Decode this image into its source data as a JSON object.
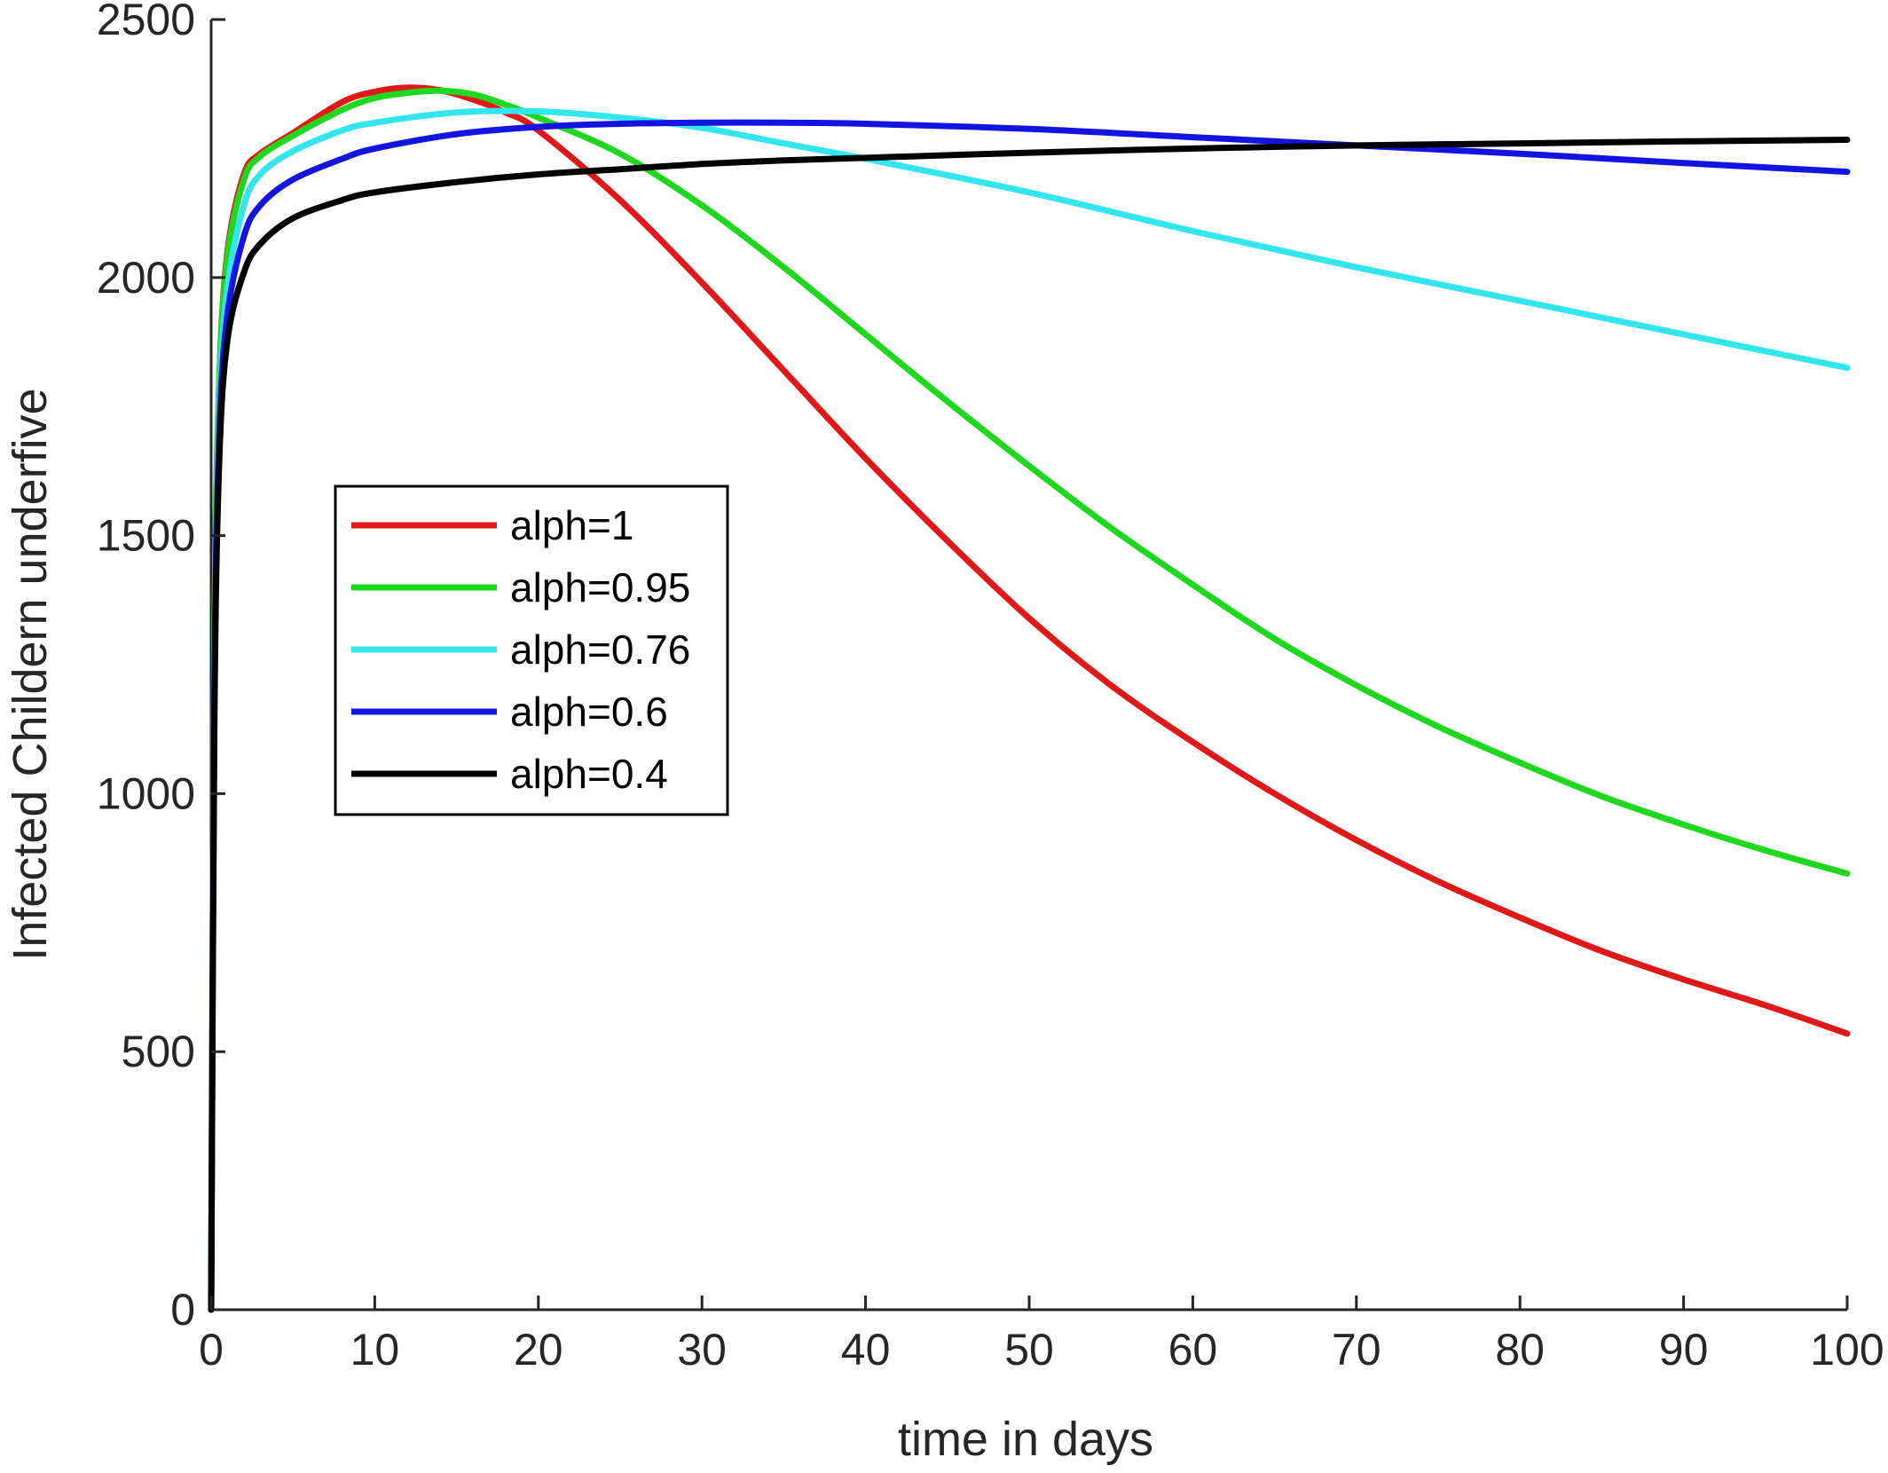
{
  "chart_data": {
    "type": "line",
    "title": "",
    "xlabel": "time in days",
    "ylabel": "Infected Childern underfive",
    "xlim": [
      0,
      100
    ],
    "ylim": [
      0,
      2500
    ],
    "xticks": [
      0,
      10,
      20,
      30,
      40,
      50,
      60,
      70,
      80,
      90,
      100
    ],
    "xtick_labels": [
      "0",
      "10",
      "20",
      "30",
      "40",
      "50",
      "60",
      "70",
      "80",
      "90",
      "100"
    ],
    "yticks": [
      0,
      500,
      1000,
      1500,
      2000,
      2500
    ],
    "ytick_labels": [
      "0",
      "500",
      "1000",
      "1500",
      "2000",
      "2500"
    ],
    "grid": false,
    "legend_position": "center-left",
    "series": [
      {
        "name": "alph=1",
        "color": "#e01818",
        "x": [
          0,
          0.2,
          0.5,
          1,
          2,
          3,
          5,
          8,
          10,
          12,
          14,
          16,
          18,
          20,
          25,
          30,
          35,
          40,
          45,
          50,
          55,
          60,
          65,
          70,
          75,
          80,
          85,
          90,
          95,
          100
        ],
        "y": [
          0,
          1300,
          1800,
          2050,
          2200,
          2240,
          2280,
          2340,
          2360,
          2368,
          2363,
          2345,
          2320,
          2285,
          2150,
          1990,
          1820,
          1650,
          1490,
          1340,
          1210,
          1100,
          1000,
          910,
          830,
          760,
          695,
          640,
          590,
          535
        ]
      },
      {
        "name": "alph=0.95",
        "color": "#1ed81e",
        "x": [
          0,
          0.2,
          0.5,
          1,
          2,
          3,
          5,
          8,
          10,
          12,
          14,
          16,
          18,
          20,
          25,
          30,
          35,
          40,
          45,
          50,
          55,
          60,
          65,
          70,
          75,
          80,
          85,
          90,
          95,
          100
        ],
        "y": [
          0,
          1300,
          1800,
          2040,
          2190,
          2235,
          2275,
          2325,
          2348,
          2358,
          2362,
          2355,
          2335,
          2310,
          2240,
          2140,
          2020,
          1890,
          1760,
          1635,
          1515,
          1405,
          1300,
          1210,
          1130,
          1060,
          995,
          940,
          890,
          845
        ]
      },
      {
        "name": "alph=0.76",
        "color": "#33e6ee",
        "x": [
          0,
          0.2,
          0.5,
          1,
          2,
          3,
          5,
          8,
          10,
          15,
          20,
          25,
          30,
          35,
          40,
          50,
          60,
          70,
          80,
          90,
          100
        ],
        "y": [
          0,
          1250,
          1750,
          1980,
          2140,
          2200,
          2245,
          2285,
          2300,
          2320,
          2322,
          2310,
          2290,
          2260,
          2230,
          2165,
          2090,
          2020,
          1955,
          1890,
          1825
        ]
      },
      {
        "name": "alph=0.6",
        "color": "#1414e0",
        "x": [
          0,
          0.2,
          0.5,
          1,
          2,
          3,
          5,
          8,
          10,
          15,
          20,
          25,
          30,
          35,
          40,
          50,
          60,
          70,
          80,
          90,
          100
        ],
        "y": [
          0,
          1200,
          1700,
          1930,
          2080,
          2140,
          2190,
          2230,
          2250,
          2278,
          2292,
          2298,
          2300,
          2300,
          2298,
          2288,
          2272,
          2256,
          2240,
          2222,
          2205
        ]
      },
      {
        "name": "alph=0.4",
        "color": "#000000",
        "x": [
          0,
          0.2,
          0.5,
          1,
          2,
          3,
          5,
          8,
          10,
          15,
          20,
          25,
          30,
          35,
          40,
          50,
          60,
          70,
          80,
          90,
          100
        ],
        "y": [
          0,
          1150,
          1650,
          1880,
          2010,
          2065,
          2115,
          2150,
          2165,
          2185,
          2200,
          2210,
          2220,
          2227,
          2232,
          2242,
          2250,
          2256,
          2260,
          2264,
          2267
        ]
      }
    ]
  }
}
